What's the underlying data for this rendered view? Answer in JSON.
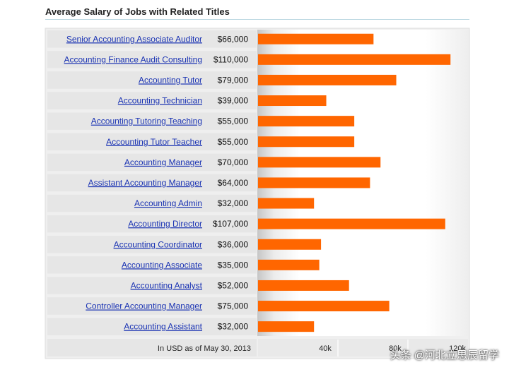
{
  "watermark": "头条 @河北立思辰留学",
  "chart_data": {
    "type": "bar",
    "orientation": "horizontal",
    "title": "Average Salary of Jobs with Related Titles",
    "categories": [
      "Senior Accounting Associate Auditor",
      "Accounting Finance Audit Consulting",
      "Accounting Tutor",
      "Accounting Technician",
      "Accounting Tutoring Teaching",
      "Accounting Tutor Teacher",
      "Accounting Manager",
      "Assistant Accounting Manager",
      "Accounting Admin",
      "Accounting Director",
      "Accounting Coordinator",
      "Accounting Associate",
      "Accounting Analyst",
      "Controller Accounting Manager",
      "Accounting Assistant"
    ],
    "values": [
      66000,
      110000,
      79000,
      39000,
      55000,
      55000,
      70000,
      64000,
      32000,
      107000,
      36000,
      35000,
      52000,
      75000,
      32000
    ],
    "value_labels": [
      "$66,000",
      "$110,000",
      "$79,000",
      "$39,000",
      "$55,000",
      "$55,000",
      "$70,000",
      "$64,000",
      "$32,000",
      "$107,000",
      "$36,000",
      "$35,000",
      "$52,000",
      "$75,000",
      "$32,000"
    ],
    "xlim": [
      0,
      120000
    ],
    "xticks": [
      40000,
      80000,
      120000
    ],
    "xtick_labels": [
      "40k",
      "80k",
      "120k"
    ],
    "footnote": "In USD as of May 30, 2013",
    "bar_color": "#ff6600",
    "grid": false
  }
}
